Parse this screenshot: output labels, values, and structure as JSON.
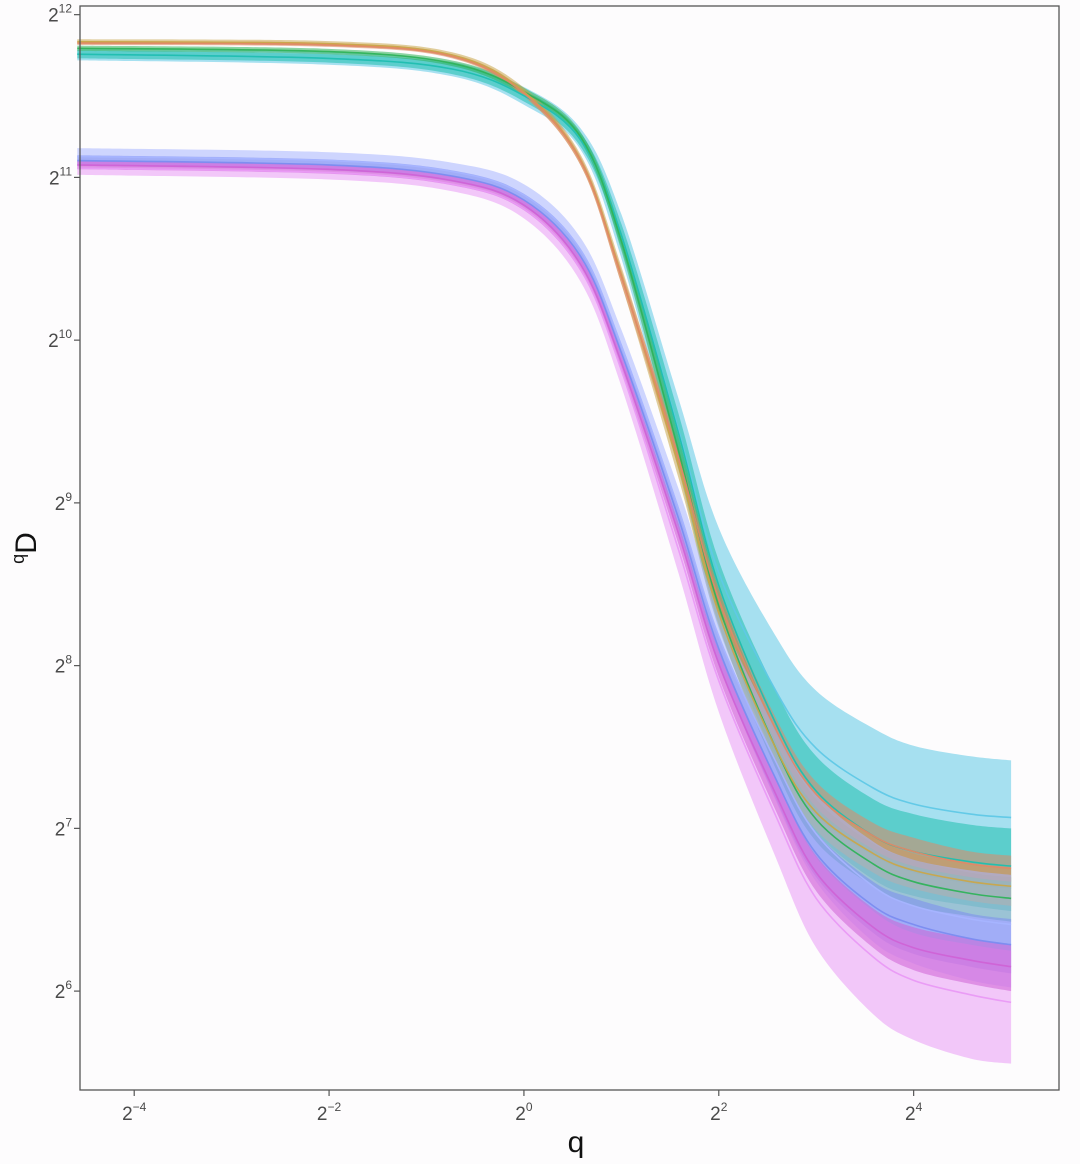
{
  "chart_data": {
    "type": "line",
    "xlabel": "q",
    "ylabel": {
      "superscript": "q",
      "base": "D"
    },
    "x_scale": "log2",
    "y_scale": "log2",
    "x_ticks": [
      {
        "base": "2",
        "exp": "−4",
        "value": 0.0625
      },
      {
        "base": "2",
        "exp": "−2",
        "value": 0.25
      },
      {
        "base": "2",
        "exp": "0",
        "value": 1
      },
      {
        "base": "2",
        "exp": "2",
        "value": 4
      },
      {
        "base": "2",
        "exp": "4",
        "value": 16
      }
    ],
    "y_ticks": [
      {
        "base": "2",
        "exp": "6",
        "value": 64
      },
      {
        "base": "2",
        "exp": "7",
        "value": 128
      },
      {
        "base": "2",
        "exp": "8",
        "value": 256
      },
      {
        "base": "2",
        "exp": "9",
        "value": 512
      },
      {
        "base": "2",
        "exp": "10",
        "value": 1024
      },
      {
        "base": "2",
        "exp": "11",
        "value": 2048
      },
      {
        "base": "2",
        "exp": "12",
        "value": 4096
      }
    ],
    "xlim": [
      0.0425,
      45
    ],
    "ylim": [
      42,
      4250
    ],
    "grid": false,
    "legend": "none",
    "series": [
      {
        "color": "#5fc8e6",
        "q": [
          0.0417,
          0.25,
          0.6,
          1,
          1.5,
          2,
          3,
          4,
          6,
          8,
          12,
          16,
          24,
          32
        ],
        "D": [
          3461,
          3400,
          3250,
          2900,
          2400,
          1600,
          700,
          380,
          230,
          180,
          152,
          142,
          136,
          134
        ],
        "lower": [
          3371,
          3310,
          3150,
          2790,
          2300,
          1450,
          590,
          300,
          175,
          135,
          114,
          106,
          101,
          99
        ],
        "upper": [
          3551,
          3490,
          3350,
          3010,
          2520,
          1750,
          800,
          460,
          290,
          230,
          196,
          182,
          174,
          171
        ]
      },
      {
        "color": "#1fbfae",
        "q": [
          0.0417,
          0.25,
          0.6,
          1,
          1.5,
          2,
          3,
          4,
          6,
          8,
          12,
          16,
          24,
          32
        ],
        "D": [
          3461,
          3400,
          3250,
          2900,
          2400,
          1600,
          690,
          360,
          200,
          150,
          124,
          116,
          111,
          109
        ],
        "lower": [
          3400,
          3340,
          3180,
          2830,
          2330,
          1520,
          630,
          320,
          170,
          126,
          103,
          96,
          92,
          90
        ],
        "upper": [
          3521,
          3460,
          3320,
          2970,
          2470,
          1680,
          750,
          400,
          230,
          174,
          145,
          136,
          130,
          128
        ]
      },
      {
        "color": "#2fb35a",
        "q": [
          0.0417,
          0.25,
          0.6,
          1,
          1.5,
          2,
          3,
          4,
          6,
          8,
          12,
          16,
          24,
          32
        ],
        "D": [
          3550,
          3500,
          3330,
          2950,
          2430,
          1560,
          640,
          330,
          180,
          133,
          110,
          102,
          97,
          95
        ],
        "lower": [
          3510,
          3460,
          3290,
          2900,
          2380,
          1500,
          600,
          305,
          165,
          121,
          100,
          92,
          88,
          86
        ],
        "upper": [
          3590,
          3540,
          3370,
          3000,
          2480,
          1620,
          680,
          355,
          195,
          145,
          120,
          112,
          106,
          104
        ]
      },
      {
        "color": "#c9a64a",
        "q": [
          0.0417,
          0.25,
          0.6,
          1,
          1.5,
          2,
          3,
          4,
          6,
          8,
          12,
          16,
          24,
          32
        ],
        "D": [
          3650,
          3620,
          3450,
          2950,
          2200,
          1350,
          600,
          320,
          180,
          137,
          115,
          107,
          102,
          100
        ],
        "lower": [
          3610,
          3580,
          3410,
          2900,
          2150,
          1300,
          570,
          302,
          168,
          127,
          106,
          99,
          94,
          92
        ],
        "upper": [
          3690,
          3660,
          3490,
          3000,
          2250,
          1400,
          630,
          338,
          192,
          147,
          124,
          115,
          110,
          108
        ]
      },
      {
        "color": "#e08866",
        "q": [
          0.0417,
          0.25,
          0.6,
          1,
          1.5,
          2,
          3,
          4,
          6,
          8,
          12,
          16,
          24,
          32
        ],
        "D": [
          3630,
          3600,
          3430,
          2930,
          2190,
          1340,
          620,
          340,
          195,
          148,
          124,
          116,
          110,
          108
        ],
        "lower": [
          3600,
          3570,
          3400,
          2890,
          2150,
          1300,
          595,
          325,
          185,
          140,
          117,
          109,
          104,
          102
        ],
        "upper": [
          3660,
          3630,
          3460,
          2970,
          2230,
          1380,
          645,
          355,
          205,
          156,
          131,
          123,
          116,
          114
        ]
      },
      {
        "color": "#a7b4ff",
        "q": [
          0.0417,
          0.25,
          0.6,
          1,
          1.5,
          2,
          3,
          4,
          6,
          8,
          12,
          16,
          24,
          32
        ],
        "D": [
          2240,
          2200,
          2100,
          1900,
          1500,
          1000,
          500,
          290,
          170,
          125,
          100,
          92,
          87,
          85
        ],
        "lower": [
          2160,
          2120,
          2020,
          1810,
          1420,
          930,
          455,
          258,
          144,
          102,
          79,
          72,
          67,
          65
        ],
        "upper": [
          2320,
          2280,
          2180,
          1990,
          1580,
          1070,
          545,
          322,
          196,
          148,
          121,
          112,
          107,
          105
        ]
      },
      {
        "color": "#7b8cf0",
        "q": [
          0.0417,
          0.25,
          0.6,
          1,
          1.5,
          2,
          3,
          4,
          6,
          8,
          12,
          16,
          24,
          32
        ],
        "D": [
          2200,
          2160,
          2060,
          1860,
          1460,
          970,
          480,
          275,
          158,
          115,
          92,
          85,
          80,
          78
        ],
        "lower": [
          2150,
          2110,
          2010,
          1810,
          1410,
          930,
          455,
          258,
          145,
          104,
          82,
          75,
          71,
          69
        ],
        "upper": [
          2250,
          2210,
          2110,
          1910,
          1510,
          1010,
          505,
          292,
          171,
          126,
          102,
          95,
          89,
          87
        ]
      },
      {
        "color": "#e99af6",
        "q": [
          0.0417,
          0.25,
          0.6,
          1,
          1.5,
          2,
          3,
          4,
          6,
          8,
          12,
          16,
          24,
          32
        ],
        "D": [
          2130,
          2090,
          1990,
          1790,
          1380,
          900,
          420,
          240,
          135,
          95,
          74,
          67,
          63,
          61
        ],
        "lower": [
          2070,
          2030,
          1930,
          1720,
          1310,
          840,
          380,
          210,
          113,
          77,
          58,
          52,
          48,
          47
        ],
        "upper": [
          2190,
          2150,
          2050,
          1860,
          1450,
          960,
          460,
          270,
          157,
          113,
          90,
          82,
          78,
          76
        ]
      },
      {
        "color": "#cf63d6",
        "q": [
          0.0417,
          0.25,
          0.6,
          1,
          1.5,
          2,
          3,
          4,
          6,
          8,
          12,
          16,
          24,
          32
        ],
        "D": [
          2160,
          2120,
          2020,
          1820,
          1410,
          930,
          450,
          258,
          148,
          106,
          84,
          77,
          73,
          71
        ],
        "lower": [
          2120,
          2080,
          1980,
          1780,
          1370,
          900,
          430,
          244,
          138,
          98,
          77,
          70,
          66,
          64
        ],
        "upper": [
          2200,
          2160,
          2060,
          1860,
          1450,
          960,
          470,
          272,
          158,
          114,
          91,
          84,
          80,
          78
        ]
      }
    ]
  }
}
